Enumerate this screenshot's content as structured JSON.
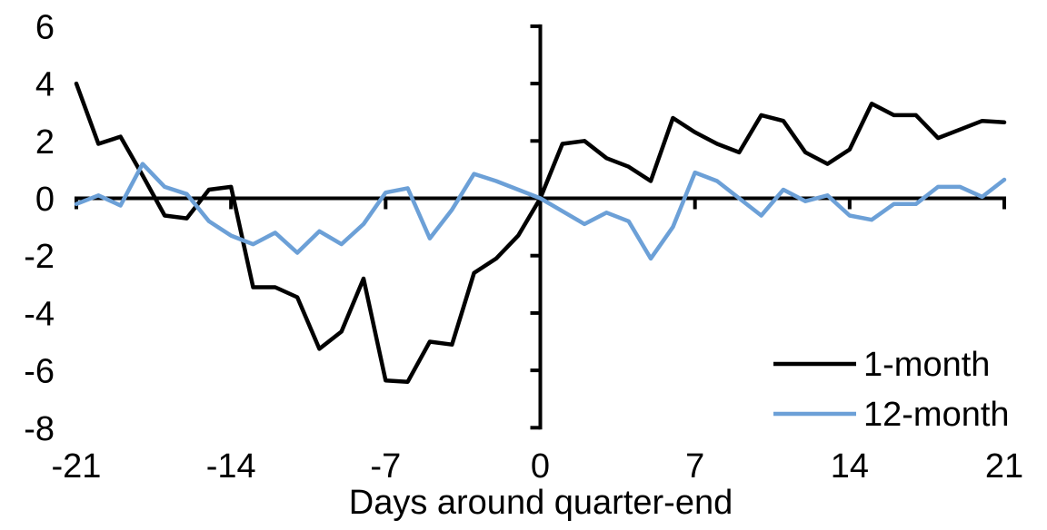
{
  "chart_data": {
    "type": "line",
    "title": "",
    "xlabel": "Days around quarter-end",
    "ylabel": "",
    "xlim": [
      -21,
      21
    ],
    "ylim": [
      -8,
      6
    ],
    "x_ticks": [
      -21,
      -14,
      -7,
      0,
      7,
      14,
      21
    ],
    "y_ticks": [
      6,
      4,
      2,
      0,
      -2,
      -4,
      -6,
      -8
    ],
    "grid": false,
    "legend_position": "right-center",
    "axis_color": "#000000",
    "x": [
      -21,
      -20,
      -19,
      -18,
      -17,
      -16,
      -15,
      -14,
      -13,
      -12,
      -11,
      -10,
      -9,
      -8,
      -7,
      -6,
      -5,
      -4,
      -3,
      -2,
      -1,
      0,
      1,
      2,
      3,
      4,
      5,
      6,
      7,
      8,
      9,
      10,
      11,
      12,
      13,
      14,
      15,
      16,
      17,
      18,
      19,
      20,
      21
    ],
    "series": [
      {
        "name": "1-month",
        "color": "#000000",
        "values": [
          4.0,
          1.9,
          2.15,
          0.8,
          -0.6,
          -0.7,
          0.3,
          0.4,
          -3.1,
          -3.1,
          -3.45,
          -5.25,
          -4.65,
          -2.8,
          -6.35,
          -6.4,
          -5.0,
          -5.1,
          -2.6,
          -2.1,
          -1.3,
          0.0,
          1.9,
          2.0,
          1.4,
          1.1,
          0.6,
          2.8,
          2.3,
          1.9,
          1.6,
          2.9,
          2.7,
          1.6,
          1.2,
          1.7,
          3.3,
          2.9,
          2.9,
          2.1,
          2.4,
          2.7,
          2.65
        ]
      },
      {
        "name": "12-month",
        "color": "#6CA0D7",
        "values": [
          -0.2,
          0.1,
          -0.25,
          1.2,
          0.4,
          0.15,
          -0.8,
          -1.3,
          -1.6,
          -1.2,
          -1.9,
          -1.15,
          -1.6,
          -0.9,
          0.2,
          0.35,
          -1.4,
          -0.4,
          0.85,
          0.6,
          0.3,
          0.0,
          -0.45,
          -0.9,
          -0.5,
          -0.8,
          -2.1,
          -1.0,
          0.9,
          0.6,
          0.0,
          -0.6,
          0.3,
          -0.1,
          0.1,
          -0.6,
          -0.75,
          -0.2,
          -0.2,
          0.4,
          0.4,
          0.05,
          0.65
        ]
      }
    ]
  }
}
